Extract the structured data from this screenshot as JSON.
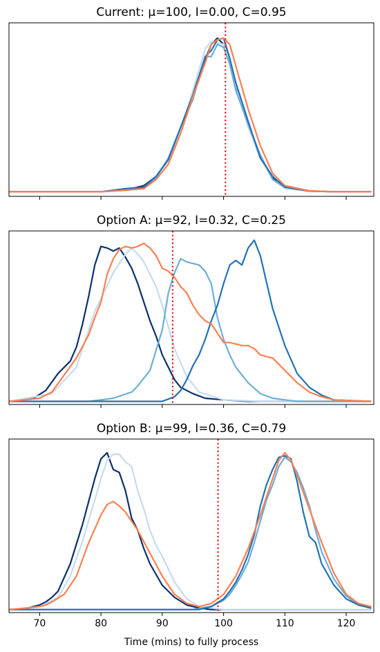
{
  "chart_data": {
    "type": "line",
    "xlabel": "Time (mins) to fully process",
    "xlim": [
      65,
      124.5
    ],
    "xticks": [
      70,
      80,
      90,
      100,
      110,
      120
    ],
    "xtick_labels": [
      "70",
      "80",
      "90",
      "100",
      "110",
      "120"
    ],
    "shared_x": true,
    "y_ticks_shown": false,
    "grid": false,
    "legend": "none",
    "line_colors": [
      "#08306b",
      "#c6dbef",
      "#6baed6",
      "#2171b5",
      "#ff7f50"
    ],
    "reference_line_color": "#e41a1c",
    "panels": [
      {
        "title": "Current: μ=100, I=0.00, C=0.95",
        "ylim": [
          -0.03,
          1.1
        ],
        "vline": 100.3,
        "series": [
          {
            "x": [
              65,
              70,
              75,
              80,
              84,
              87,
              89,
              91,
              93,
              95,
              97,
              98,
              99,
              100,
              101,
              102,
              104,
              106,
              108,
              110,
              114,
              118,
              124
            ],
            "y": [
              0,
              0,
              0,
              0,
              0.01,
              0.04,
              0.1,
              0.21,
              0.4,
              0.64,
              0.86,
              0.96,
              1.0,
              0.96,
              0.84,
              0.68,
              0.44,
              0.22,
              0.09,
              0.03,
              0.005,
              0,
              0
            ]
          },
          {
            "x": [
              65,
              70,
              75,
              80,
              84,
              87,
              89,
              91,
              93,
              95,
              97,
              98,
              99,
              100,
              101,
              102,
              104,
              106,
              108,
              110,
              114,
              118,
              124
            ],
            "y": [
              0,
              0,
              0,
              0,
              0.01,
              0.03,
              0.1,
              0.2,
              0.4,
              0.66,
              0.93,
              0.98,
              0.97,
              0.96,
              0.86,
              0.7,
              0.42,
              0.22,
              0.08,
              0.02,
              0.004,
              0,
              0
            ]
          },
          {
            "x": [
              65,
              70,
              75,
              80,
              84,
              87,
              89,
              91,
              93,
              95,
              97,
              98,
              99,
              100,
              101,
              102,
              104,
              106,
              108,
              110,
              114,
              118,
              124
            ],
            "y": [
              0,
              0,
              0,
              0,
              0.01,
              0.03,
              0.09,
              0.22,
              0.42,
              0.6,
              0.88,
              0.88,
              0.96,
              0.94,
              0.83,
              0.66,
              0.44,
              0.24,
              0.08,
              0.03,
              0.004,
              0,
              0
            ]
          },
          {
            "x": [
              65,
              70,
              75,
              80,
              84,
              87,
              89,
              91,
              93,
              95,
              97,
              98,
              99,
              100,
              101,
              102,
              104,
              106,
              108,
              110,
              114,
              118,
              124
            ],
            "y": [
              0,
              0,
              0,
              0,
              0.02,
              0.03,
              0.1,
              0.21,
              0.42,
              0.63,
              0.88,
              0.92,
              0.99,
              1.0,
              0.87,
              0.71,
              0.46,
              0.22,
              0.1,
              0.03,
              0.004,
              0,
              0
            ]
          },
          {
            "x": [
              65,
              70,
              75,
              80,
              84,
              87,
              89,
              91,
              93,
              95,
              97,
              98,
              99,
              100,
              101,
              102,
              104,
              106,
              108,
              110,
              114,
              118,
              124
            ],
            "y": [
              0,
              0,
              0,
              0,
              0.01,
              0.02,
              0.08,
              0.18,
              0.38,
              0.62,
              0.84,
              0.96,
              0.99,
              1.0,
              0.96,
              0.82,
              0.54,
              0.3,
              0.12,
              0.04,
              0.006,
              0,
              0
            ]
          }
        ]
      },
      {
        "title": "Option A: μ=92, I=0.32, C=0.25",
        "ylim": [
          -0.02,
          1.1
        ],
        "vline": 91.7,
        "series": [
          {
            "x": [
              65,
              69,
              71,
              73,
              75,
              76,
              77,
              78,
              79,
              80,
              81,
              82,
              83,
              84,
              85,
              86,
              87,
              88,
              89,
              90,
              91,
              92,
              93,
              95,
              97,
              100,
              104,
              110,
              124
            ],
            "y": [
              0,
              0.02,
              0.07,
              0.18,
              0.26,
              0.35,
              0.5,
              0.68,
              0.88,
              1.0,
              0.99,
              0.97,
              0.99,
              0.93,
              0.86,
              0.76,
              0.64,
              0.52,
              0.42,
              0.3,
              0.22,
              0.14,
              0.09,
              0.05,
              0.02,
              0.01,
              0,
              0,
              0
            ]
          },
          {
            "x": [
              65,
              72,
              76,
              79,
              82,
              84,
              85,
              86,
              87,
              88,
              89,
              90,
              91,
              92,
              94,
              96,
              100,
              106,
              124
            ],
            "y": [
              0,
              0.05,
              0.22,
              0.58,
              0.83,
              0.95,
              0.99,
              0.95,
              0.9,
              0.82,
              0.74,
              0.62,
              0.48,
              0.34,
              0.16,
              0.06,
              0.01,
              0,
              0
            ]
          },
          {
            "x": [
              65,
              78,
              80,
              82,
              85,
              86,
              88,
              90,
              91,
              92,
              93,
              94,
              96,
              97,
              98,
              99,
              100,
              101,
              102,
              104,
              106,
              108,
              110,
              112,
              114,
              124
            ],
            "y": [
              0,
              0,
              0.01,
              0.02,
              0.06,
              0.1,
              0.2,
              0.46,
              0.7,
              0.83,
              0.92,
              0.9,
              0.88,
              0.84,
              0.76,
              0.54,
              0.4,
              0.3,
              0.22,
              0.12,
              0.05,
              0.02,
              0.01,
              0,
              0,
              0
            ]
          },
          {
            "x": [
              65,
              88,
              90,
              92,
              93,
              94,
              95,
              96,
              97,
              98,
              99,
              100,
              101,
              102,
              103,
              104,
              105,
              106,
              108,
              110,
              112,
              114,
              116,
              118,
              124
            ],
            "y": [
              0,
              0,
              0,
              0.03,
              0.07,
              0.14,
              0.23,
              0.3,
              0.4,
              0.52,
              0.62,
              0.76,
              0.88,
              0.91,
              0.88,
              0.99,
              1.04,
              0.94,
              0.6,
              0.36,
              0.18,
              0.09,
              0.04,
              0.01,
              0
            ]
          },
          {
            "x": [
              65,
              70,
              72,
              74,
              76,
              78,
              79,
              80,
              81,
              82,
              83,
              84,
              85,
              86,
              87,
              88,
              89,
              90,
              91,
              92,
              93,
              94,
              95,
              96,
              97,
              98,
              99,
              100,
              101,
              102,
              103,
              104,
              105,
              106,
              108,
              110,
              112,
              114,
              116,
              118,
              124
            ],
            "y": [
              0,
              0.02,
              0.06,
              0.17,
              0.28,
              0.43,
              0.54,
              0.64,
              0.82,
              0.92,
              0.98,
              1.0,
              0.99,
              1.0,
              1.02,
              0.99,
              0.94,
              0.86,
              0.84,
              0.8,
              0.74,
              0.7,
              0.62,
              0.56,
              0.52,
              0.5,
              0.44,
              0.38,
              0.38,
              0.37,
              0.36,
              0.36,
              0.34,
              0.3,
              0.28,
              0.2,
              0.12,
              0.06,
              0.03,
              0.01,
              0
            ]
          }
        ]
      },
      {
        "title": "Option B: μ=99, I=0.36, C=0.79",
        "ylim": [
          -0.02,
          1.12
        ],
        "vline": 99.1,
        "series": [
          {
            "x": [
              65,
              68,
              70,
              71,
              72,
              73,
              75,
              77,
              79,
              80,
              81,
              82,
              83,
              84,
              85,
              86,
              87,
              88,
              90,
              92,
              94,
              96,
              98,
              100,
              104,
              110,
              124
            ],
            "y": [
              0,
              0.01,
              0.03,
              0.05,
              0.08,
              0.12,
              0.3,
              0.56,
              0.86,
              0.99,
              1.03,
              0.92,
              0.9,
              0.78,
              0.6,
              0.52,
              0.4,
              0.3,
              0.16,
              0.08,
              0.03,
              0.01,
              0,
              0,
              0,
              0,
              0
            ]
          },
          {
            "x": [
              65,
              70,
              73,
              75,
              77,
              79,
              80,
              81,
              82,
              83,
              84,
              85,
              86,
              87,
              88,
              89,
              90,
              92,
              94,
              96,
              98,
              100,
              110,
              124
            ],
            "y": [
              0,
              0.02,
              0.08,
              0.22,
              0.45,
              0.72,
              0.86,
              0.98,
              1.02,
              1.02,
              0.97,
              0.94,
              0.78,
              0.66,
              0.52,
              0.42,
              0.35,
              0.18,
              0.07,
              0.02,
              0.01,
              0,
              0,
              0
            ]
          },
          {
            "x": [
              65,
              90,
              95,
              98,
              100,
              101,
              102,
              103,
              104,
              105,
              106,
              107,
              108,
              109,
              110,
              111,
              112,
              113,
              114,
              115,
              116,
              118,
              120,
              122,
              124
            ],
            "y": [
              0,
              0,
              0,
              0.02,
              0.06,
              0.1,
              0.16,
              0.23,
              0.31,
              0.44,
              0.58,
              0.72,
              0.82,
              0.94,
              1.0,
              0.97,
              0.9,
              0.8,
              0.68,
              0.52,
              0.38,
              0.2,
              0.09,
              0.03,
              0.02
            ]
          },
          {
            "x": [
              65,
              92,
              96,
              98,
              100,
              101,
              102,
              103,
              104,
              105,
              106,
              107,
              108,
              109,
              110,
              111,
              112,
              113,
              114,
              115,
              116,
              118,
              120,
              122,
              124
            ],
            "y": [
              0,
              0,
              0,
              0.02,
              0.07,
              0.12,
              0.18,
              0.26,
              0.36,
              0.49,
              0.68,
              0.82,
              0.92,
              1.0,
              1.01,
              0.99,
              0.84,
              0.64,
              0.48,
              0.44,
              0.3,
              0.16,
              0.07,
              0.03,
              0.01
            ]
          },
          {
            "x": [
              65,
              68,
              70,
              71,
              72,
              74,
              76,
              78,
              80,
              81,
              82,
              83,
              84,
              86,
              88,
              90,
              92,
              94,
              96,
              98,
              100,
              102,
              104,
              106,
              108,
              109,
              110,
              111,
              112,
              114,
              116,
              118,
              120,
              122,
              124
            ],
            "y": [
              0,
              0.01,
              0.02,
              0.03,
              0.05,
              0.1,
              0.22,
              0.44,
              0.62,
              0.69,
              0.71,
              0.68,
              0.64,
              0.52,
              0.37,
              0.22,
              0.1,
              0.04,
              0.02,
              0.04,
              0.1,
              0.22,
              0.4,
              0.62,
              0.86,
              0.98,
              1.03,
              0.98,
              0.88,
              0.66,
              0.44,
              0.24,
              0.1,
              0.04,
              0.02
            ]
          }
        ]
      }
    ]
  }
}
